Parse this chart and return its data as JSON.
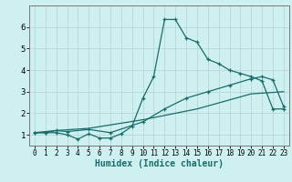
{
  "xlabel": "Humidex (Indice chaleur)",
  "xlim": [
    -0.5,
    23.5
  ],
  "ylim": [
    0.5,
    7.0
  ],
  "xticks": [
    0,
    1,
    2,
    3,
    4,
    5,
    6,
    7,
    8,
    9,
    10,
    11,
    12,
    13,
    14,
    15,
    16,
    17,
    18,
    19,
    20,
    21,
    22,
    23
  ],
  "yticks": [
    1,
    2,
    3,
    4,
    5,
    6
  ],
  "bg_color": "#cff0f0",
  "grid_color": "#b8d8d8",
  "line_color": "#1a6b6b",
  "series1_x": [
    0,
    1,
    2,
    3,
    4,
    5,
    6,
    7,
    8,
    9,
    10,
    11,
    12,
    13,
    14,
    15,
    16,
    17,
    18,
    19,
    20,
    21,
    22,
    23
  ],
  "series1_y": [
    1.1,
    1.1,
    1.1,
    1.0,
    0.8,
    1.05,
    0.85,
    0.85,
    1.05,
    1.4,
    2.7,
    3.7,
    6.35,
    6.35,
    5.5,
    5.3,
    4.5,
    4.3,
    4.0,
    3.85,
    3.7,
    3.5,
    2.2,
    2.2
  ],
  "series2_x": [
    0,
    1,
    2,
    3,
    5,
    7,
    10,
    12,
    14,
    16,
    18,
    20,
    21,
    22,
    23
  ],
  "series2_y": [
    1.1,
    1.1,
    1.2,
    1.15,
    1.25,
    1.1,
    1.6,
    2.2,
    2.7,
    3.0,
    3.3,
    3.6,
    3.7,
    3.55,
    2.3
  ],
  "series3_x": [
    0,
    2,
    5,
    10,
    15,
    20,
    23
  ],
  "series3_y": [
    1.1,
    1.2,
    1.3,
    1.7,
    2.2,
    2.9,
    3.0
  ]
}
